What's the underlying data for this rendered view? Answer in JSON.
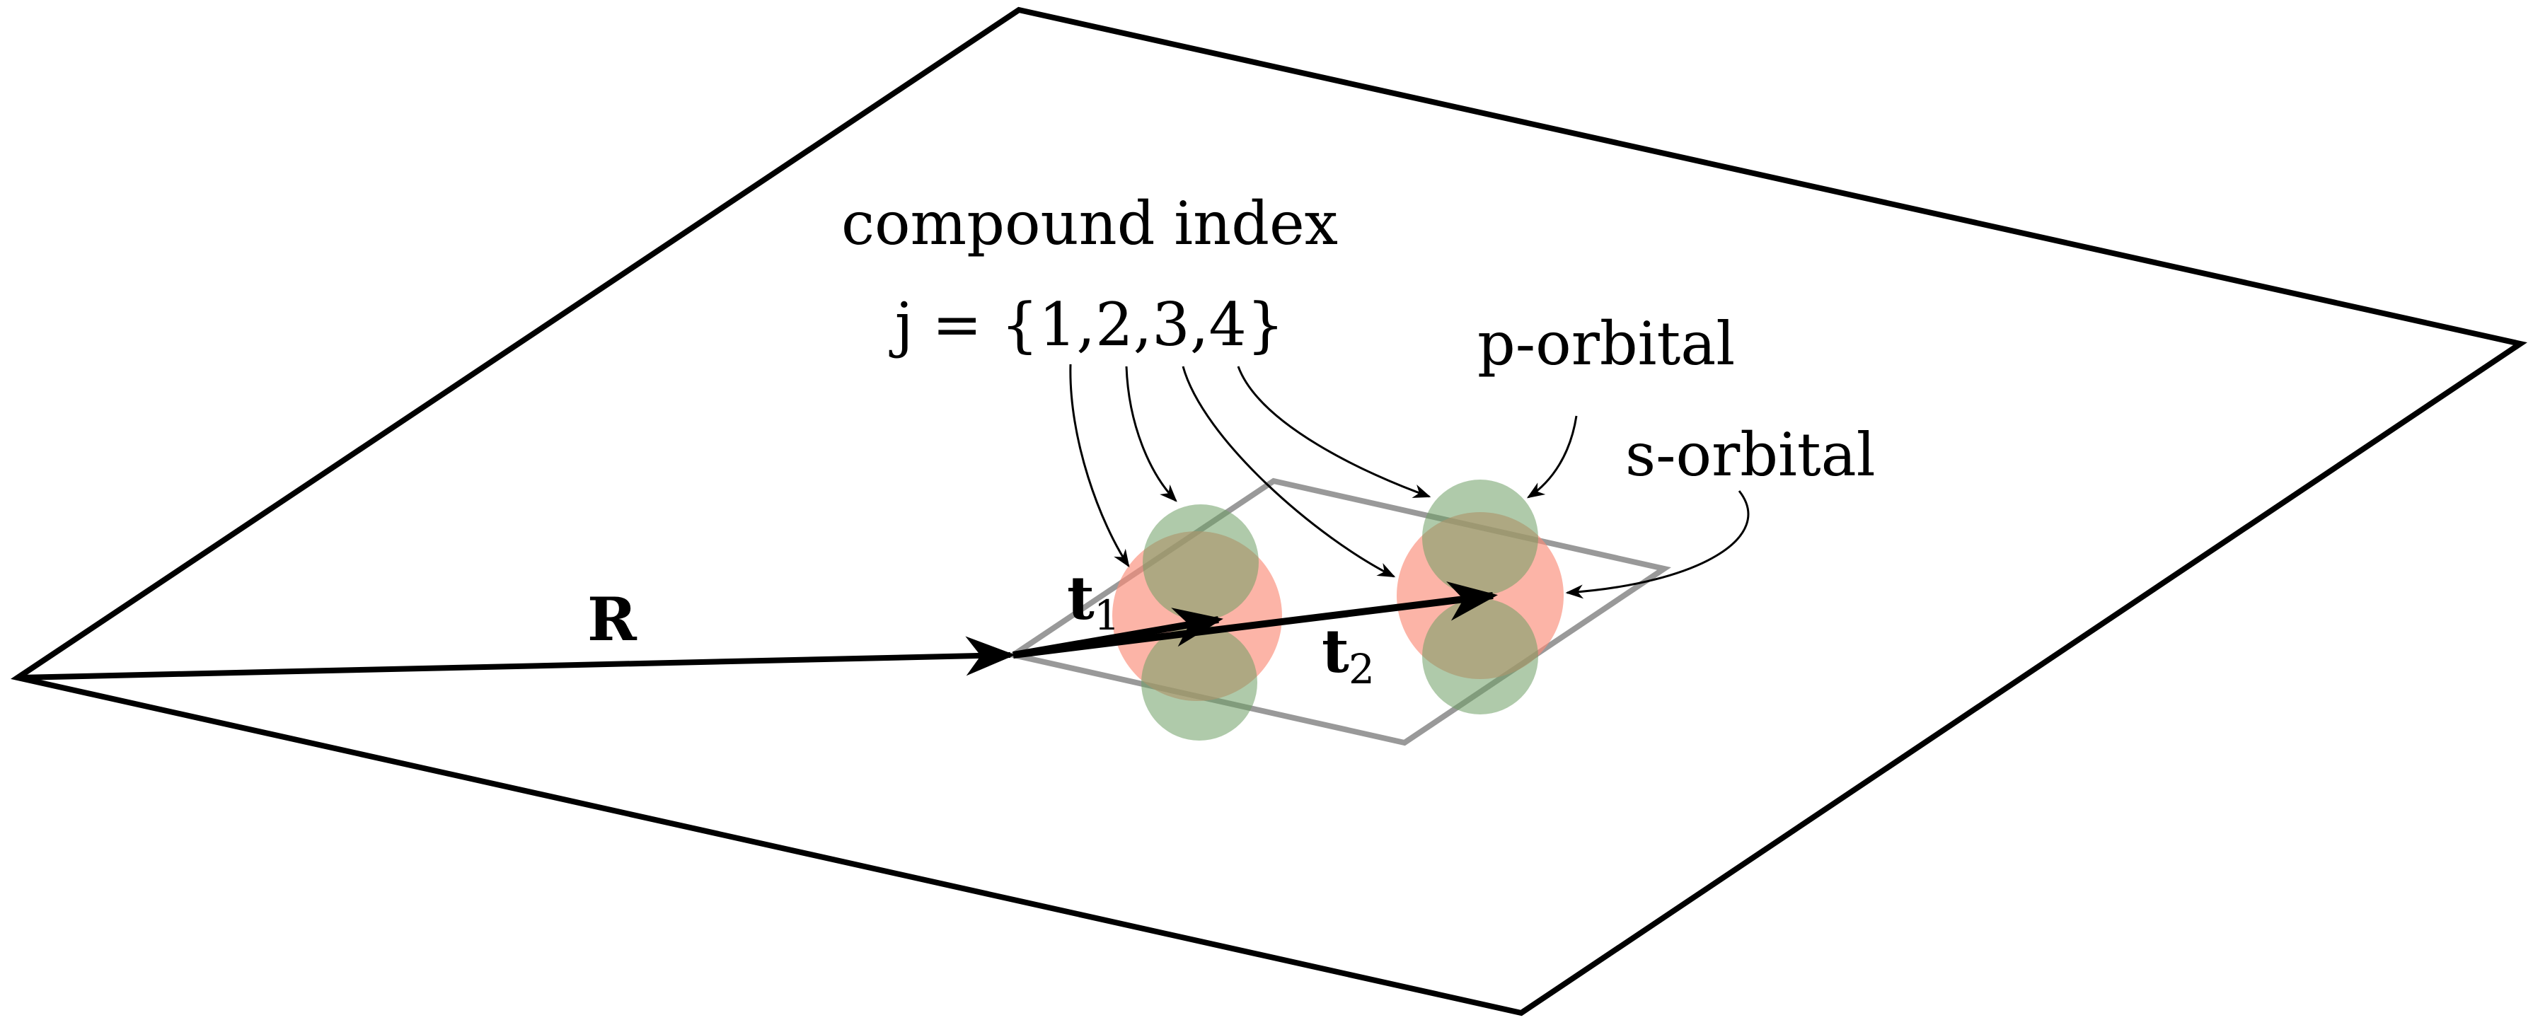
{
  "labels": {
    "title_line1": "compound index",
    "title_line2": "j = {1,2,3,4}",
    "p_orbital": "p-orbital",
    "s_orbital": "s-orbital",
    "vec_R": "R",
    "vec_t1_main": "t",
    "vec_t1_sub": "1",
    "vec_t2_main": "t",
    "vec_t2_sub": "2"
  },
  "colors": {
    "plane_stroke": "#000000",
    "cell_stroke": "#999999",
    "s_orbital_fill": "#fa8c78",
    "p_orbital_fill": "#6e9e64",
    "vector": "#000000"
  }
}
